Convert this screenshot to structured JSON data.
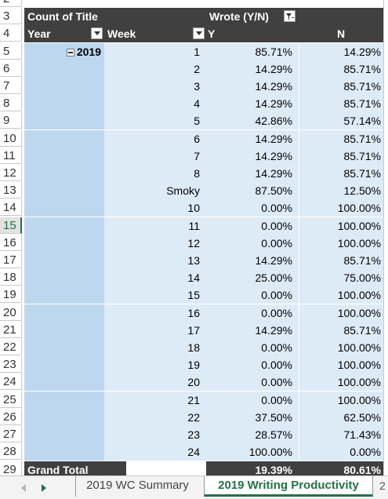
{
  "pivot": {
    "header_top": {
      "row": "3",
      "label": "Count of Title",
      "col_field": "Wrote (Y/N)"
    },
    "header": {
      "row": "4",
      "year": "Year",
      "week": "Week",
      "y": "Y",
      "n": "N"
    },
    "year_label": "2019",
    "rows": [
      {
        "row": "5",
        "week": "1",
        "y": "85.71%",
        "n": "14.29%"
      },
      {
        "row": "6",
        "week": "2",
        "y": "14.29%",
        "n": "85.71%"
      },
      {
        "row": "7",
        "week": "3",
        "y": "14.29%",
        "n": "85.71%"
      },
      {
        "row": "8",
        "week": "4",
        "y": "14.29%",
        "n": "85.71%"
      },
      {
        "row": "9",
        "week": "5",
        "y": "42.86%",
        "n": "57.14%"
      },
      {
        "row": "10",
        "week": "6",
        "y": "14.29%",
        "n": "85.71%"
      },
      {
        "row": "11",
        "week": "7",
        "y": "14.29%",
        "n": "85.71%"
      },
      {
        "row": "12",
        "week": "8",
        "y": "14.29%",
        "n": "85.71%"
      },
      {
        "row": "13",
        "week": "Smoky",
        "y": "87.50%",
        "n": "12.50%"
      },
      {
        "row": "14",
        "week": "10",
        "y": "0.00%",
        "n": "100.00%"
      },
      {
        "row": "15",
        "week": "11",
        "y": "0.00%",
        "n": "100.00%"
      },
      {
        "row": "16",
        "week": "12",
        "y": "0.00%",
        "n": "100.00%"
      },
      {
        "row": "17",
        "week": "13",
        "y": "14.29%",
        "n": "85.71%"
      },
      {
        "row": "18",
        "week": "14",
        "y": "25.00%",
        "n": "75.00%"
      },
      {
        "row": "19",
        "week": "15",
        "y": "0.00%",
        "n": "100.00%"
      },
      {
        "row": "20",
        "week": "16",
        "y": "0.00%",
        "n": "100.00%"
      },
      {
        "row": "21",
        "week": "17",
        "y": "14.29%",
        "n": "85.71%"
      },
      {
        "row": "22",
        "week": "18",
        "y": "0.00%",
        "n": "100.00%"
      },
      {
        "row": "23",
        "week": "19",
        "y": "0.00%",
        "n": "100.00%"
      },
      {
        "row": "24",
        "week": "20",
        "y": "0.00%",
        "n": "100.00%"
      },
      {
        "row": "25",
        "week": "21",
        "y": "0.00%",
        "n": "100.00%"
      },
      {
        "row": "26",
        "week": "22",
        "y": "37.50%",
        "n": "62.50%"
      },
      {
        "row": "27",
        "week": "23",
        "y": "28.57%",
        "n": "71.43%"
      },
      {
        "row": "28",
        "week": "24",
        "y": "100.00%",
        "n": "0.00%"
      }
    ],
    "total": {
      "row": "29",
      "label": "Grand Total",
      "y": "19.39%",
      "n": "80.61%"
    },
    "active_row": "15",
    "icons": {
      "filter": "filter-dropdown-icon",
      "col_filter": "column-filter-icon",
      "collapse": "collapse-minus-icon"
    }
  },
  "tabs": {
    "inactive": "2019 WC Summary",
    "active": "2019 Writing Productivity",
    "more": "2"
  },
  "colors": {
    "header": "#404040",
    "year_col": "#bdd7ee",
    "data": "#ddebf7",
    "accent": "#217346"
  }
}
